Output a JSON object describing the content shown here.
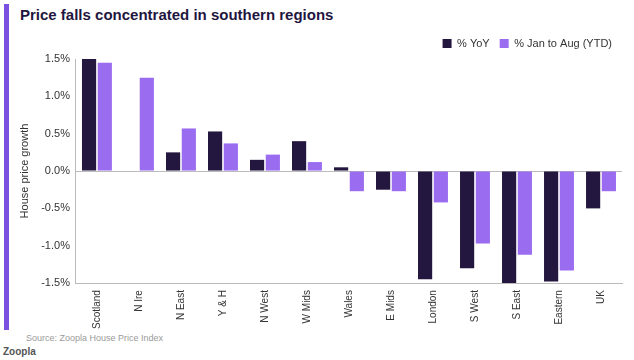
{
  "chart_data": {
    "type": "bar",
    "title": "Price falls concentrated in southern regions",
    "y_label": "House price growth",
    "source": "Source: Zoopla House Price Index",
    "footer": "Zoopla",
    "categories": [
      "Scotland",
      "N Ire",
      "N East",
      "Y & H",
      "N West",
      "W Mids",
      "Wales",
      "E Mids",
      "London",
      "S West",
      "S East",
      "Eastern",
      "UK"
    ],
    "series": [
      {
        "name": "% YoY",
        "color": "#24173f",
        "values": [
          1.5,
          null,
          0.25,
          0.53,
          0.15,
          0.4,
          0.05,
          -0.25,
          -1.45,
          -1.3,
          -1.5,
          -1.48,
          -0.5
        ]
      },
      {
        "name": "% Jan to Aug (YTD)",
        "color": "#9a6cf0",
        "values": [
          1.45,
          1.25,
          0.57,
          0.37,
          0.22,
          0.12,
          -0.27,
          -0.27,
          -0.42,
          -0.97,
          -1.12,
          -1.33,
          -0.27
        ]
      }
    ],
    "ylim": [
      -1.5,
      1.5
    ],
    "yticks": [
      {
        "value": -1.5,
        "label": "-1.5%"
      },
      {
        "value": -1.0,
        "label": "-1.0%"
      },
      {
        "value": -0.5,
        "label": "-0.5%"
      },
      {
        "value": 0.0,
        "label": "0.0%"
      },
      {
        "value": 0.5,
        "label": "0.5%"
      },
      {
        "value": 1.0,
        "label": "1.0%"
      },
      {
        "value": 1.5,
        "label": "1.5%"
      }
    ],
    "grid": false,
    "legend": "top-right"
  }
}
